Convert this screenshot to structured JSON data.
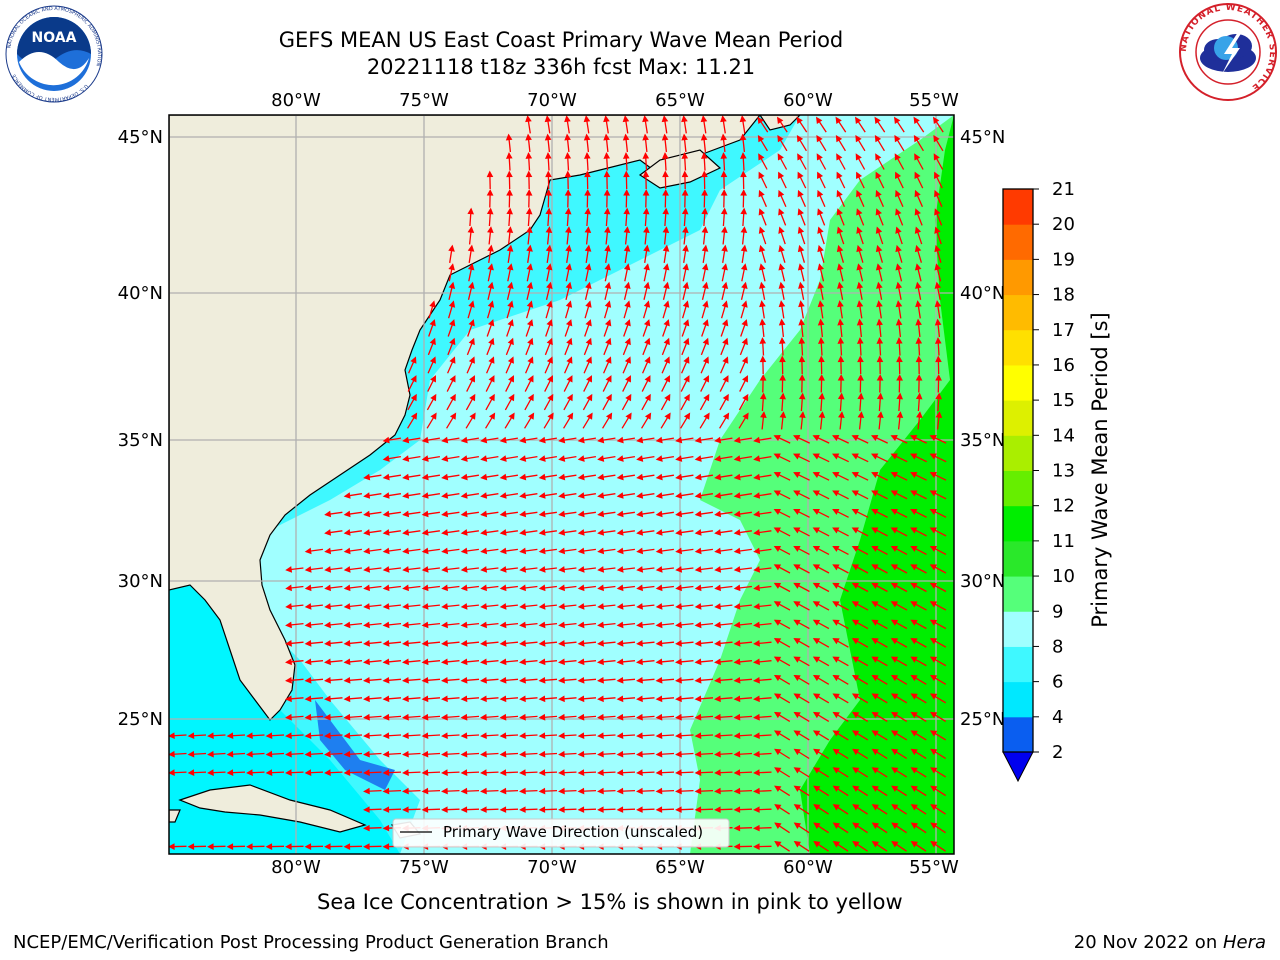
{
  "title_line1": "GEFS MEAN US East Coast Primary Wave Mean Period",
  "title_line2": "20221118 t18z 336h fcst   Max: 11.21",
  "lon_labels": [
    "80°W",
    "75°W",
    "70°W",
    "65°W",
    "60°W",
    "55°W"
  ],
  "lat_labels": [
    "45°N",
    "40°N",
    "35°N",
    "30°N",
    "25°N"
  ],
  "legend_label": "Primary Wave Direction (unscaled)",
  "colorbar": {
    "label": "Primary Wave Mean Period [s]",
    "ticks": [
      "2",
      "4",
      "6",
      "8",
      "9",
      "10",
      "11",
      "12",
      "13",
      "14",
      "15",
      "16",
      "17",
      "18",
      "19",
      "20",
      "21"
    ],
    "colors": [
      "#0a5ef0",
      "#00e8ff",
      "#3ff8ff",
      "#a0ffff",
      "#55ff7a",
      "#2ae82a",
      "#00ee00",
      "#66ee00",
      "#aaee00",
      "#ddf000",
      "#ffff00",
      "#ffe000",
      "#ffbb00",
      "#ff9900",
      "#ff6a00",
      "#ff3a00",
      "#ff0000"
    ],
    "extend_color": "#0000ee"
  },
  "subtitle": "Sea Ice Concentration > 15% is shown in pink to yellow",
  "footer_left": "NCEP/EMC/Verification Post Processing Product Generation Branch",
  "footer_right_date": "20 Nov 2022 on ",
  "footer_right_host": "Hera",
  "colors": {
    "land": "#efeddc",
    "arrow": "#ff0000",
    "grid": "#b0b0b0"
  },
  "logos": {
    "noaa_text": "NOAA",
    "noaa_ring_text": "NATIONAL OCEANIC AND ATMOSPHERIC ADMINISTRATION",
    "noaa_ring_text_bottom": "U.S. DEPARTMENT OF COMMERCE",
    "nws_ring_text": "NATIONAL WEATHER SERVICE"
  }
}
